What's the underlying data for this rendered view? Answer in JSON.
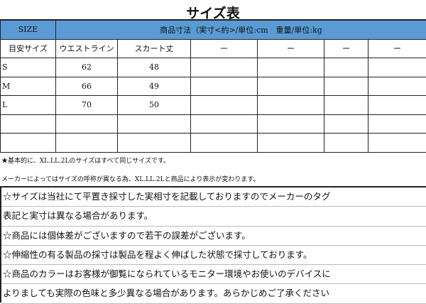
{
  "title": "サイズ表",
  "header": {
    "size": "SIZE",
    "dimensions": "商品寸法（実寸<約>/単位:cm　重量/単位:kg"
  },
  "columns": [
    "目安サイズ",
    "ウエストライン",
    "スカート丈",
    "ー",
    "ー",
    "ー",
    "ー"
  ],
  "rows": [
    [
      "S",
      "62",
      "48",
      "",
      "",
      "",
      ""
    ],
    [
      "M",
      "66",
      "49",
      "",
      "",
      "",
      ""
    ],
    [
      "L",
      "70",
      "50",
      "",
      "",
      "",
      ""
    ],
    [
      "",
      "",
      "",
      "",
      "",
      "",
      ""
    ],
    [
      "",
      "",
      "",
      "",
      "",
      "",
      ""
    ]
  ],
  "notes": [
    "★基本的に、XL.LL.2Lのサイズはすべて同じサイズです。",
    "メーカーによってはサイズの呼称が異なる為、XL.LL.2Lと商品により表示が変わります。"
  ],
  "disclaimer": [
    "☆サイズは当社にて平置き採寸した実相寸を記載しておりますのでメーカーのタグ",
    "表記と実寸は異なる場合があります。",
    "☆商品には個体差がございますので若干の誤差がございます。",
    "☆伸縮性の有る製品の採寸は製品を程よく伸ばした状態で採寸しております。",
    "☆商品のカラーはお客様が御覧になられているモニター環境やお使いのデバイスに",
    "よりましても実際の色味と多少異なる場合があります。あらかじめご了承ください"
  ],
  "colors": {
    "header_bg": "#5b9bd5"
  }
}
